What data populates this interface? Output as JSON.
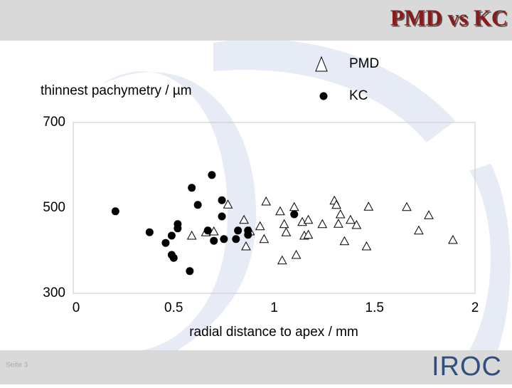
{
  "chart_data": {
    "type": "scatter",
    "title": "PMD vs KC",
    "ylabel": "thinnest pachymetry / µm",
    "xlabel": "radial distance to apex / mm",
    "xlim": [
      0,
      2
    ],
    "xticks": [
      0,
      0.5,
      1,
      1.5,
      2
    ],
    "ylim": [
      300,
      700
    ],
    "yticks": [
      300,
      500,
      700
    ],
    "legend": "top-right",
    "grid": false,
    "series": [
      {
        "name": "PMD",
        "marker": "triangle",
        "color": "#000000",
        "x": [
          0.59,
          0.66,
          0.7,
          0.77,
          0.85,
          0.86,
          0.88,
          0.93,
          0.95,
          0.96,
          1.03,
          1.04,
          1.05,
          1.06,
          1.1,
          1.11,
          1.14,
          1.15,
          1.17,
          1.17,
          1.24,
          1.3,
          1.31,
          1.32,
          1.33,
          1.35,
          1.38,
          1.41,
          1.47,
          1.46,
          1.66,
          1.72,
          1.77,
          1.89
        ],
        "values": [
          435,
          443,
          445,
          508,
          472,
          410,
          445,
          457,
          427,
          515,
          492,
          377,
          462,
          443,
          502,
          390,
          467,
          435,
          472,
          437,
          462,
          517,
          507,
          463,
          485,
          422,
          472,
          460,
          503,
          410,
          502,
          447,
          483,
          425
        ]
      },
      {
        "name": "KC",
        "marker": "circle",
        "color": "#000000",
        "x": [
          0.21,
          0.38,
          0.46,
          0.49,
          0.49,
          0.5,
          0.52,
          0.52,
          0.58,
          0.59,
          0.62,
          0.67,
          0.69,
          0.7,
          0.74,
          0.74,
          0.75,
          0.81,
          0.82,
          0.87,
          0.87,
          1.1
        ],
        "values": [
          492,
          443,
          418,
          435,
          390,
          383,
          462,
          452,
          352,
          547,
          507,
          447,
          577,
          423,
          518,
          480,
          427,
          427,
          447,
          447,
          437,
          485
        ]
      }
    ]
  },
  "footer": {
    "page": "Seite 3",
    "logo": "IROC"
  }
}
